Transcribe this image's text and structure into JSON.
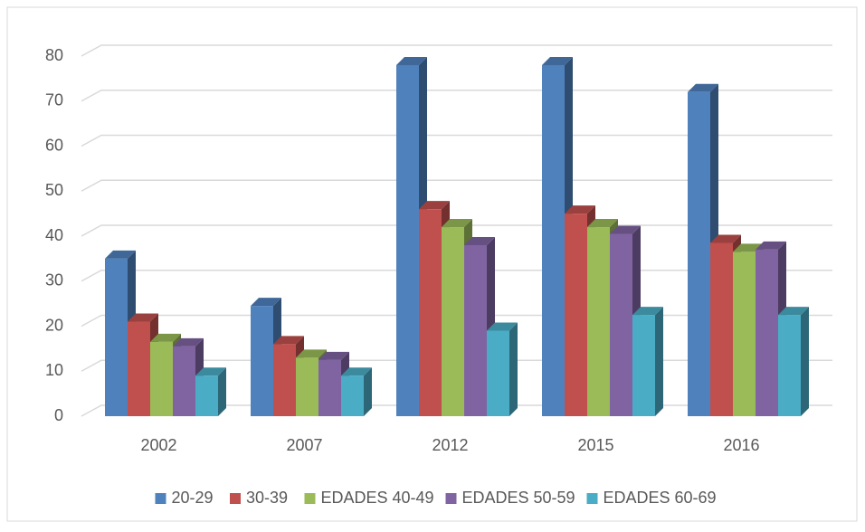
{
  "chart_data": {
    "type": "bar3d",
    "categories": [
      "2002",
      "2007",
      "2012",
      "2015",
      "2016"
    ],
    "series": [
      {
        "name": "20-29",
        "color": "#4f81bd",
        "values": [
          35,
          24.5,
          78,
          78,
          72
        ]
      },
      {
        "name": "30-39",
        "color": "#c0504d",
        "values": [
          21,
          16,
          46,
          45,
          38.5
        ]
      },
      {
        "name": "EDADES 40-49",
        "color": "#9bbb59",
        "values": [
          16.5,
          13,
          42,
          42,
          36.5
        ]
      },
      {
        "name": "EDADES 50-59",
        "color": "#8064a2",
        "values": [
          15.5,
          12.5,
          38,
          40.5,
          37
        ]
      },
      {
        "name": "EDADES 60-69",
        "color": "#4bacc6",
        "values": [
          9,
          9,
          19,
          22.5,
          22.5
        ]
      }
    ],
    "ylim": [
      0,
      80
    ],
    "yticks": [
      0,
      10,
      20,
      30,
      40,
      50,
      60,
      70,
      80
    ],
    "grid": true,
    "legend": "bottom"
  }
}
